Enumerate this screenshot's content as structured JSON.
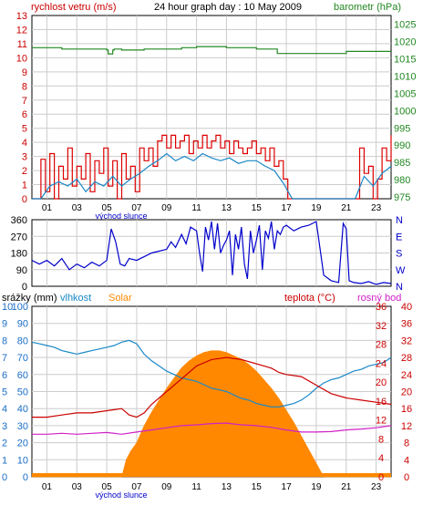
{
  "header": {
    "wind_label": "rychlost vetru (m/s)",
    "title": "24 hour graph day : 10 May 2009",
    "pressure_label": "barometr (hPa)"
  },
  "colors": {
    "wind": "#dd0000",
    "wind_avg": "#1a88c8",
    "pressure": "#228822",
    "direction": "#0000cc",
    "humidity": "#1a88c8",
    "temperature": "#cc0000",
    "dewpoint": "#d020c8",
    "solar": "#ff8800",
    "rain": "#ff8800",
    "grid": "#cccccc",
    "left_axis": "#cc0000",
    "right_axis_top": "#228822",
    "direction_axis": "#0000cc",
    "bottom_left_axis": "#1a6ec8",
    "bottom_right_axis": "#cc0000"
  },
  "chart_data": [
    {
      "type": "line",
      "id": "wind_pressure",
      "xticks": [
        "01",
        "03",
        "05",
        "07",
        "09",
        "11",
        "13",
        "15",
        "17",
        "19",
        "21",
        "23"
      ],
      "xnote": "východ slunce",
      "x_range": [
        0,
        24
      ],
      "y_left_label": "rychlost vetru (m/s)",
      "y_left_ticks": [
        0,
        1,
        2,
        3,
        4,
        5,
        6,
        7,
        8,
        9,
        10,
        11,
        12,
        13
      ],
      "y_left_range": [
        0,
        13
      ],
      "y_right_label": "barometr (hPa)",
      "y_right_ticks": [
        975,
        980,
        985,
        990,
        995,
        1000,
        1005,
        1010,
        1015,
        1020,
        1025
      ],
      "y_right_range": [
        974.5,
        1027.5
      ],
      "grid": true,
      "series": [
        {
          "name": "gust",
          "axis": "left",
          "x": [
            0,
            0.3,
            0.6,
            0.9,
            1.2,
            1.5,
            1.8,
            2.1,
            2.4,
            2.7,
            3.0,
            3.3,
            3.6,
            3.9,
            4.2,
            4.5,
            4.8,
            5.1,
            5.4,
            5.7,
            6.0,
            6.3,
            6.6,
            6.9,
            7.2,
            7.5,
            7.8,
            8.1,
            8.4,
            8.7,
            9.0,
            9.3,
            9.6,
            9.9,
            10.2,
            10.5,
            10.8,
            11.1,
            11.4,
            11.7,
            12.0,
            12.3,
            12.6,
            12.9,
            13.2,
            13.5,
            13.8,
            14.1,
            14.4,
            14.7,
            15.0,
            15.3,
            15.6,
            15.9,
            16.2,
            16.5,
            16.8,
            17.1,
            17.4,
            17.7,
            18.0,
            18.3,
            18.6,
            18.9,
            19.2,
            19.5,
            19.8,
            20.1,
            20.4,
            20.7,
            21.0,
            21.3,
            21.6,
            21.9,
            22.2,
            22.5,
            22.8,
            23.1,
            23.4,
            23.7,
            24.0
          ],
          "values": [
            0,
            0,
            2.8,
            0.5,
            3.2,
            0,
            2.3,
            1.4,
            3.6,
            0.9,
            2.3,
            1.4,
            3.2,
            0.5,
            2.7,
            1.8,
            3.6,
            0.9,
            2.7,
            0,
            3.2,
            1.4,
            2.3,
            0.5,
            3.6,
            2.7,
            3.6,
            2.3,
            4.1,
            4.5,
            3.6,
            4.5,
            3.6,
            4.1,
            4.5,
            3.2,
            4.1,
            3.6,
            4.5,
            3.6,
            4.1,
            4.5,
            3.6,
            4.1,
            3.2,
            4.1,
            3.6,
            3.2,
            3.6,
            4.1,
            3.2,
            3.6,
            2.7,
            3.6,
            2.3,
            2.7,
            1.4,
            0,
            0,
            0,
            0,
            0,
            0,
            0,
            0,
            0,
            0,
            0,
            0,
            0,
            0,
            0,
            0,
            3.6,
            1.8,
            2.3,
            0,
            1.4,
            3.6,
            2.7,
            4.5
          ],
          "color": "#dd0000"
        },
        {
          "name": "avg",
          "axis": "left",
          "x": [
            0,
            0.6,
            1.2,
            1.8,
            2.4,
            3.0,
            3.6,
            4.2,
            4.8,
            5.4,
            6.0,
            6.6,
            7.2,
            7.8,
            8.4,
            9.0,
            9.6,
            10.2,
            10.8,
            11.4,
            12.0,
            12.6,
            13.2,
            13.8,
            14.4,
            15.0,
            15.6,
            16.2,
            16.8,
            17.4,
            18.0,
            18.6,
            19.2,
            19.8,
            20.4,
            21.0,
            21.6,
            22.2,
            22.8,
            23.4,
            24.0
          ],
          "values": [
            0,
            0,
            0.9,
            1.2,
            0.9,
            1.4,
            0.5,
            1.2,
            0.9,
            1.6,
            0.9,
            1.4,
            1.8,
            2.3,
            2.7,
            3.2,
            2.7,
            3.0,
            2.7,
            3.2,
            2.9,
            2.7,
            2.9,
            2.5,
            2.7,
            2.7,
            2.3,
            2.0,
            1.1,
            0,
            0,
            0,
            0,
            0,
            0,
            0,
            0,
            1.6,
            0.9,
            1.8,
            2.3
          ],
          "color": "#1a88c8"
        },
        {
          "name": "pressure",
          "axis": "right",
          "x": [
            0,
            1.0,
            2.0,
            3.0,
            4.0,
            5.0,
            5.1,
            5.2,
            5.4,
            5.5,
            6.0,
            7.0,
            7.5,
            8.0,
            9.0,
            10.0,
            11.0,
            12.0,
            13.0,
            14.0,
            15.0,
            16.0,
            16.4,
            17.0,
            18.0,
            19.0,
            20.0,
            21.0,
            22.0,
            23.0,
            24.0
          ],
          "values": [
            1018.2,
            1018.2,
            1017.8,
            1017.8,
            1017.8,
            1017.5,
            1016.4,
            1016.4,
            1017.5,
            1017.8,
            1017.5,
            1017.5,
            1017.8,
            1017.8,
            1017.8,
            1018.2,
            1018.5,
            1018.5,
            1018.2,
            1018.2,
            1017.8,
            1017.8,
            1016.5,
            1016.5,
            1016.5,
            1016.5,
            1016.5,
            1017.1,
            1017.1,
            1017.1,
            1017.1
          ],
          "color": "#228822"
        }
      ]
    },
    {
      "type": "line",
      "id": "wind_direction",
      "x_range": [
        0,
        24
      ],
      "y_left_ticks": [
        0,
        90,
        180,
        270,
        360
      ],
      "y_left_range": [
        0,
        360
      ],
      "y_right_ticks": [
        "N",
        "W",
        "S",
        "E",
        "N"
      ],
      "grid": true,
      "series": [
        {
          "name": "direction",
          "x": [
            0,
            0.5,
            1.0,
            1.5,
            2.0,
            2.5,
            3.0,
            3.5,
            4.0,
            4.5,
            5.0,
            5.3,
            5.6,
            5.9,
            6.2,
            6.5,
            7.0,
            7.5,
            8.0,
            8.5,
            9.0,
            9.3,
            9.6,
            10.0,
            10.3,
            10.6,
            11.0,
            11.2,
            11.4,
            11.6,
            11.8,
            12.0,
            12.2,
            12.4,
            12.6,
            12.8,
            13.0,
            13.2,
            13.4,
            13.6,
            13.8,
            14.0,
            14.2,
            14.4,
            14.6,
            14.8,
            15.0,
            15.2,
            15.4,
            15.6,
            15.8,
            16.0,
            16.2,
            16.4,
            16.6,
            16.8,
            17.0,
            17.5,
            18.0,
            18.5,
            19.0,
            19.5,
            20.0,
            20.5,
            20.8,
            21.0,
            21.2,
            21.5,
            22.0,
            22.5,
            23.0,
            23.5,
            24.0
          ],
          "values": [
            140,
            120,
            140,
            110,
            150,
            90,
            120,
            100,
            130,
            110,
            140,
            310,
            240,
            120,
            110,
            150,
            140,
            160,
            180,
            190,
            200,
            240,
            210,
            280,
            230,
            320,
            300,
            180,
            80,
            320,
            250,
            350,
            200,
            340,
            180,
            220,
            250,
            300,
            60,
            280,
            200,
            320,
            120,
            40,
            300,
            180,
            250,
            330,
            90,
            300,
            260,
            350,
            200,
            300,
            280,
            320,
            330,
            300,
            320,
            330,
            350,
            60,
            30,
            20,
            340,
            310,
            30,
            20,
            15,
            25,
            10,
            20,
            15
          ],
          "color": "#0000cc"
        }
      ]
    },
    {
      "type": "line",
      "id": "rain_humidity_temp",
      "labels": {
        "rain": "srážky (mm)",
        "humidity": "vlhkost",
        "solar": "Solar",
        "temperature": "teplota (°C)",
        "dewpoint": "rosný bod"
      },
      "xticks": [
        "01",
        "03",
        "05",
        "07",
        "09",
        "11",
        "13",
        "15",
        "17",
        "19",
        "21",
        "23"
      ],
      "xnote": "východ slunce",
      "x_range": [
        0,
        24
      ],
      "y_left_outer_ticks": [
        0,
        1,
        2,
        3,
        4,
        5,
        6,
        7,
        8,
        9,
        10
      ],
      "y_left_inner_ticks": [
        0,
        10,
        20,
        30,
        40,
        50,
        60,
        70,
        80,
        90,
        100
      ],
      "y_left_inner_range": [
        0,
        100
      ],
      "y_mid_ticks": [
        0,
        4,
        8,
        12,
        16,
        20,
        24,
        28,
        32,
        36
      ],
      "y_mid_range": [
        0,
        36
      ],
      "y_right_ticks": [
        0,
        4,
        8,
        12,
        16,
        20,
        24,
        28,
        32,
        36,
        40
      ],
      "y_right_range": [
        0,
        40
      ],
      "grid": true,
      "series": [
        {
          "name": "humidity",
          "axis": "left_inner",
          "x": [
            0,
            0.5,
            1.0,
            1.5,
            2.0,
            2.5,
            3.0,
            3.5,
            4.0,
            4.5,
            5.0,
            5.5,
            6.0,
            6.5,
            7.0,
            7.5,
            8.0,
            8.5,
            9.0,
            9.5,
            10.0,
            10.5,
            11.0,
            11.5,
            12.0,
            12.5,
            13.0,
            13.5,
            14.0,
            14.5,
            15.0,
            15.5,
            16.0,
            16.5,
            17.0,
            17.5,
            18.0,
            18.5,
            19.0,
            19.5,
            20.0,
            20.5,
            21.0,
            21.5,
            22.0,
            22.5,
            23.0,
            23.5,
            24.0
          ],
          "values": [
            79,
            78,
            77,
            76,
            74,
            73,
            72,
            73,
            74,
            75,
            76,
            77,
            79,
            80,
            78,
            72,
            68,
            65,
            62,
            60,
            58,
            57,
            56,
            54,
            52,
            51,
            50,
            48,
            46,
            45,
            43,
            42,
            41,
            41,
            42,
            43,
            45,
            48,
            52,
            55,
            57,
            58,
            60,
            62,
            63,
            65,
            66,
            67,
            70
          ],
          "color": "#1a88c8"
        },
        {
          "name": "temperature",
          "axis": "right",
          "x": [
            0,
            1.0,
            2.0,
            3.0,
            4.0,
            5.0,
            6.0,
            6.5,
            7.0,
            7.5,
            8.0,
            9.0,
            10.0,
            11.0,
            12.0,
            13.0,
            14.0,
            15.0,
            16.0,
            16.5,
            17.0,
            18.0,
            19.0,
            20.0,
            21.0,
            22.0,
            23.0,
            24.0
          ],
          "values": [
            14,
            14,
            14.5,
            15,
            15,
            15.5,
            16,
            14.5,
            14,
            15,
            17,
            20,
            23,
            26,
            27.5,
            28,
            27.5,
            26.5,
            25.5,
            24.5,
            24,
            23.5,
            21.5,
            19.5,
            18.5,
            18,
            17.5,
            17
          ],
          "color": "#cc0000"
        },
        {
          "name": "dewpoint",
          "axis": "right",
          "x": [
            0,
            1.0,
            2.0,
            3.0,
            4.0,
            5.0,
            6.0,
            7.0,
            8.0,
            9.0,
            10.0,
            11.0,
            12.0,
            13.0,
            14.0,
            15.0,
            16.0,
            17.0,
            18.0,
            19.0,
            20.0,
            21.0,
            22.0,
            23.0,
            24.0
          ],
          "values": [
            10,
            10,
            10.2,
            10,
            10.2,
            10.4,
            10,
            10.5,
            11,
            11.5,
            12,
            12.2,
            12.5,
            12.6,
            12.2,
            12,
            11.6,
            11,
            10.5,
            10.5,
            10.6,
            11,
            11.2,
            11.5,
            12
          ],
          "color": "#d020c8"
        },
        {
          "name": "solar",
          "axis": "left_inner",
          "x": [
            0,
            5.0,
            6.0,
            6.3,
            6.6,
            7.0,
            7.5,
            8.0,
            8.5,
            9.0,
            9.5,
            10.0,
            10.5,
            11.0,
            11.5,
            12.0,
            12.5,
            13.0,
            13.5,
            14.0,
            14.5,
            15.0,
            15.5,
            16.0,
            16.5,
            17.0,
            17.5,
            18.0,
            18.5,
            19.0,
            19.5,
            24.0
          ],
          "values": [
            0,
            0,
            0,
            10,
            15,
            20,
            30,
            38,
            45,
            52,
            58,
            64,
            68,
            71,
            73,
            74,
            74,
            73,
            71,
            69,
            66,
            62,
            57,
            52,
            46,
            39,
            32,
            24,
            16,
            8,
            0,
            0
          ],
          "color": "#ff8800"
        },
        {
          "name": "rain",
          "axis": "left_outer",
          "x": [
            0,
            24
          ],
          "values": [
            0,
            0
          ],
          "color": "#ff8800"
        }
      ]
    }
  ]
}
